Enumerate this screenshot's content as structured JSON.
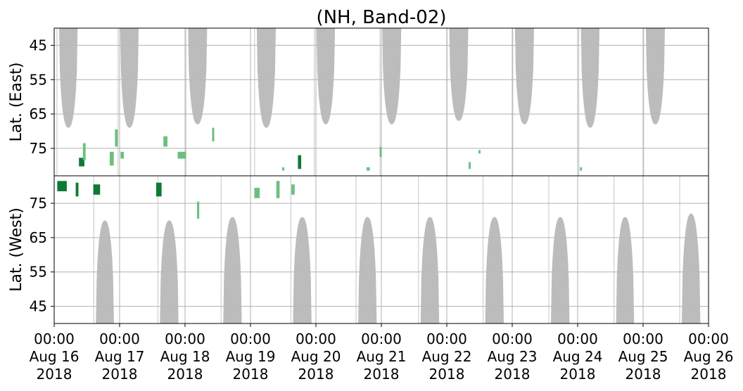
{
  "chart_data": {
    "type": "heatmap",
    "title": "(NH, Band-02)",
    "panels": [
      {
        "name": "east",
        "ylabel": "Lat. (East)",
        "ylim": [
          40,
          83
        ],
        "yticks": [
          45,
          55,
          65,
          75
        ],
        "ytick_labels": [
          "45",
          "55",
          "65",
          "75"
        ]
      },
      {
        "name": "west",
        "ylabel": "Lat. (West)",
        "ylim": [
          83,
          40
        ],
        "yticks": [
          75,
          65,
          55,
          45
        ],
        "ytick_labels": [
          "75",
          "65",
          "55",
          "45"
        ]
      }
    ],
    "x_ticks": [
      [
        "00:00",
        "Aug 16",
        "2018"
      ],
      [
        "00:00",
        "Aug 17",
        "2018"
      ],
      [
        "00:00",
        "Aug 18",
        "2018"
      ],
      [
        "00:00",
        "Aug 19",
        "2018"
      ],
      [
        "00:00",
        "Aug 20",
        "2018"
      ],
      [
        "00:00",
        "Aug 21",
        "2018"
      ],
      [
        "00:00",
        "Aug 22",
        "2018"
      ],
      [
        "00:00",
        "Aug 23",
        "2018"
      ],
      [
        "00:00",
        "Aug 24",
        "2018"
      ],
      [
        "00:00",
        "Aug 25",
        "2018"
      ],
      [
        "00:00",
        "Aug 26",
        "2018"
      ]
    ],
    "xlim_days": [
      0,
      10
    ],
    "grid": true,
    "colors": {
      "no_data": "#b8b8b8",
      "detection_light": "#6cc07f",
      "detection_dark": "#0e7a34",
      "grid": "#b0b0b0",
      "frame": "#000000"
    },
    "gray_regions_east": [
      {
        "day": 0,
        "center_hour": 5.2,
        "peak_lat": 69,
        "half_width_hours": 3.4
      },
      {
        "day": 1,
        "center_hour": 3.6,
        "peak_lat": 69,
        "half_width_hours": 3.4
      },
      {
        "day": 2,
        "center_hour": 4.6,
        "peak_lat": 68,
        "half_width_hours": 3.5
      },
      {
        "day": 3,
        "center_hour": 5.8,
        "peak_lat": 69,
        "half_width_hours": 3.5
      },
      {
        "day": 4,
        "center_hour": 3.6,
        "peak_lat": 68,
        "half_width_hours": 3.4
      },
      {
        "day": 5,
        "center_hour": 3.8,
        "peak_lat": 68,
        "half_width_hours": 3.5
      },
      {
        "day": 6,
        "center_hour": 4.4,
        "peak_lat": 67,
        "half_width_hours": 3.5
      },
      {
        "day": 7,
        "center_hour": 4.5,
        "peak_lat": 68,
        "half_width_hours": 3.5
      },
      {
        "day": 8,
        "center_hour": 4.6,
        "peak_lat": 69,
        "half_width_hours": 3.4
      },
      {
        "day": 9,
        "center_hour": 4.5,
        "peak_lat": 68,
        "half_width_hours": 3.5
      }
    ],
    "gray_regions_west": [
      {
        "day": 0,
        "center_hour": 18.6,
        "peak_lat": 70,
        "half_width_hours": 3.3
      },
      {
        "day": 1,
        "center_hour": 18.2,
        "peak_lat": 70,
        "half_width_hours": 3.4
      },
      {
        "day": 2,
        "center_hour": 17.4,
        "peak_lat": 71,
        "half_width_hours": 3.4
      },
      {
        "day": 3,
        "center_hour": 19.0,
        "peak_lat": 71,
        "half_width_hours": 3.4
      },
      {
        "day": 4,
        "center_hour": 18.9,
        "peak_lat": 71,
        "half_width_hours": 3.4
      },
      {
        "day": 5,
        "center_hour": 17.8,
        "peak_lat": 71,
        "half_width_hours": 3.4
      },
      {
        "day": 6,
        "center_hour": 17.5,
        "peak_lat": 71,
        "half_width_hours": 3.4
      },
      {
        "day": 7,
        "center_hour": 17.6,
        "peak_lat": 71,
        "half_width_hours": 3.4
      },
      {
        "day": 8,
        "center_hour": 17.4,
        "peak_lat": 71,
        "half_width_hours": 3.3
      },
      {
        "day": 9,
        "center_hour": 17.6,
        "peak_lat": 72,
        "half_width_hours": 3.4
      }
    ],
    "detections": [
      {
        "panel": "east",
        "day": 0.42,
        "lat": 79,
        "intensity": "dark",
        "span_hours": 2.0,
        "lat_span": 2.5
      },
      {
        "panel": "east",
        "day": 0.46,
        "lat": 76,
        "intensity": "light",
        "span_hours": 1.0,
        "lat_span": 5
      },
      {
        "panel": "east",
        "day": 0.88,
        "lat": 78,
        "intensity": "light",
        "span_hours": 1.5,
        "lat_span": 4
      },
      {
        "panel": "east",
        "day": 0.95,
        "lat": 72,
        "intensity": "light",
        "span_hours": 1.0,
        "lat_span": 5
      },
      {
        "panel": "east",
        "day": 1.04,
        "lat": 77,
        "intensity": "light",
        "span_hours": 1.2,
        "lat_span": 2
      },
      {
        "panel": "east",
        "day": 1.7,
        "lat": 73,
        "intensity": "light",
        "span_hours": 1.5,
        "lat_span": 3
      },
      {
        "panel": "east",
        "day": 1.95,
        "lat": 77,
        "intensity": "light",
        "span_hours": 3.0,
        "lat_span": 2
      },
      {
        "panel": "east",
        "day": 2.43,
        "lat": 71,
        "intensity": "light",
        "span_hours": 0.6,
        "lat_span": 4
      },
      {
        "panel": "east",
        "day": 3.5,
        "lat": 81,
        "intensity": "light",
        "span_hours": 0.4,
        "lat_span": 1
      },
      {
        "panel": "east",
        "day": 3.75,
        "lat": 79,
        "intensity": "dark",
        "span_hours": 1.2,
        "lat_span": 4
      },
      {
        "panel": "east",
        "day": 4.8,
        "lat": 81,
        "intensity": "light",
        "span_hours": 1.2,
        "lat_span": 1
      },
      {
        "panel": "east",
        "day": 4.99,
        "lat": 76,
        "intensity": "light",
        "span_hours": 0.8,
        "lat_span": 3
      },
      {
        "panel": "east",
        "day": 6.35,
        "lat": 80,
        "intensity": "light",
        "span_hours": 0.6,
        "lat_span": 2
      },
      {
        "panel": "east",
        "day": 6.5,
        "lat": 76,
        "intensity": "light",
        "span_hours": 0.3,
        "lat_span": 1
      },
      {
        "panel": "east",
        "day": 8.05,
        "lat": 81,
        "intensity": "light",
        "span_hours": 0.3,
        "lat_span": 1
      },
      {
        "panel": "west",
        "day": 0.12,
        "lat": 80,
        "intensity": "dark",
        "span_hours": 3.5,
        "lat_span": 3
      },
      {
        "panel": "west",
        "day": 0.35,
        "lat": 79,
        "intensity": "dark",
        "span_hours": 1.0,
        "lat_span": 4
      },
      {
        "panel": "west",
        "day": 0.65,
        "lat": 79,
        "intensity": "dark",
        "span_hours": 2.5,
        "lat_span": 3
      },
      {
        "panel": "west",
        "day": 1.6,
        "lat": 79,
        "intensity": "dark",
        "span_hours": 2.0,
        "lat_span": 4
      },
      {
        "panel": "west",
        "day": 2.2,
        "lat": 73,
        "intensity": "light",
        "span_hours": 0.8,
        "lat_span": 5
      },
      {
        "panel": "west",
        "day": 3.1,
        "lat": 78,
        "intensity": "light",
        "span_hours": 2.0,
        "lat_span": 3
      },
      {
        "panel": "west",
        "day": 3.42,
        "lat": 79,
        "intensity": "light",
        "span_hours": 1.2,
        "lat_span": 5
      },
      {
        "panel": "west",
        "day": 3.65,
        "lat": 79,
        "intensity": "light",
        "span_hours": 1.2,
        "lat_span": 3
      }
    ]
  }
}
